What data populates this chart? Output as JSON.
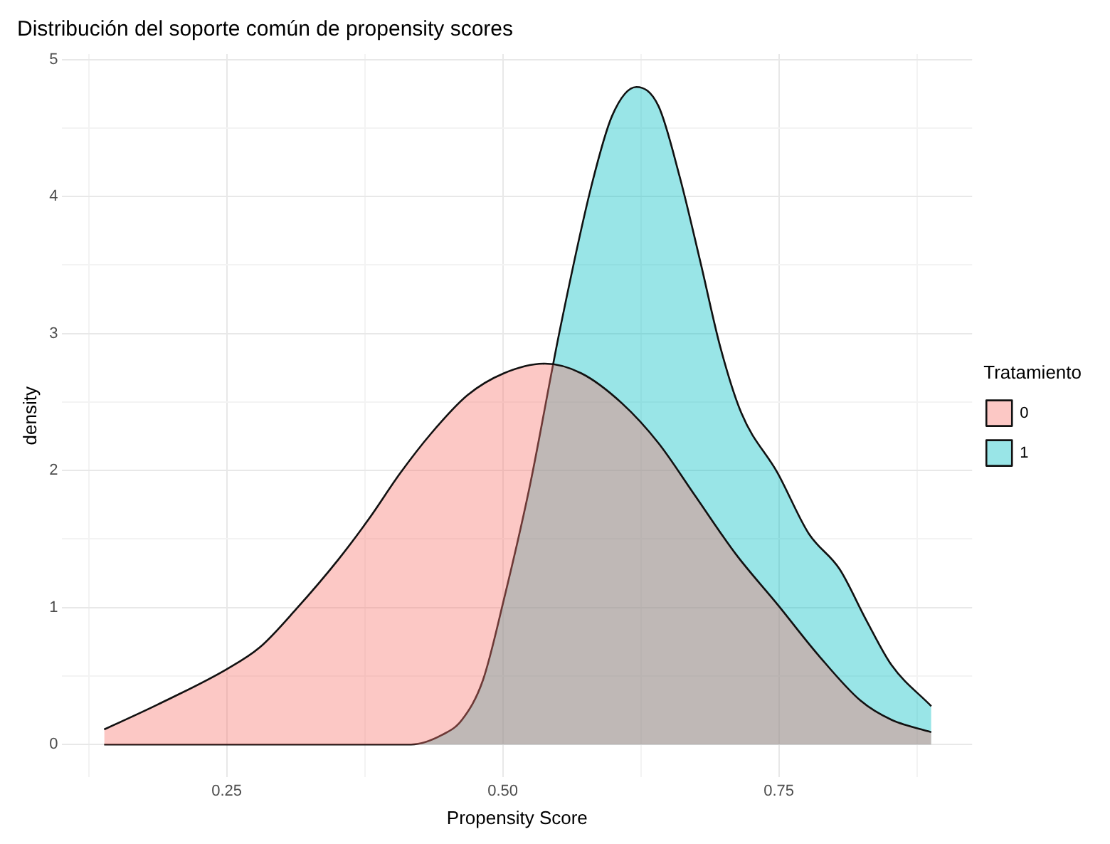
{
  "chart_data": {
    "type": "area",
    "title": "Distribución del soporte común de propensity scores",
    "xlabel": "Propensity Score",
    "ylabel": "density",
    "legend_title": "Tratamiento",
    "legend": "right",
    "grid": true,
    "marker": "none",
    "line_style": "solid",
    "xlim": [
      0.101,
      0.925
    ],
    "ylim": [
      -0.24,
      5.04
    ],
    "xticks": [
      {
        "value": 0.125,
        "label": null
      },
      {
        "value": 0.25,
        "label": "0.25"
      },
      {
        "value": 0.375,
        "label": null
      },
      {
        "value": 0.5,
        "label": "0.50"
      },
      {
        "value": 0.625,
        "label": null
      },
      {
        "value": 0.75,
        "label": "0.75"
      },
      {
        "value": 0.875,
        "label": null
      }
    ],
    "yticks": [
      0,
      {
        "value": 0.5,
        "label": null
      },
      1,
      {
        "value": 1.5,
        "label": null
      },
      2,
      {
        "value": 2.5,
        "label": null
      },
      3,
      {
        "value": 3.5,
        "label": null
      },
      4,
      {
        "value": 4.5,
        "label": null
      },
      5
    ],
    "series": [
      {
        "name": "0",
        "color": "#f8766d",
        "x": [
          0.139,
          0.187,
          0.25,
          0.28,
          0.313,
          0.351,
          0.379,
          0.407,
          0.435,
          0.468,
          0.501,
          0.538,
          0.571,
          0.608,
          0.641,
          0.673,
          0.711,
          0.749,
          0.786,
          0.824,
          0.852,
          0.888
        ],
        "values": [
          0.11,
          0.29,
          0.55,
          0.71,
          0.99,
          1.35,
          1.65,
          1.98,
          2.27,
          2.55,
          2.71,
          2.78,
          2.71,
          2.49,
          2.2,
          1.83,
          1.39,
          1.02,
          0.65,
          0.32,
          0.18,
          0.09
        ]
      },
      {
        "name": "1",
        "color": "#00bfc4",
        "x": [
          0.139,
          0.3,
          0.417,
          0.445,
          0.463,
          0.482,
          0.501,
          0.524,
          0.552,
          0.58,
          0.599,
          0.621,
          0.641,
          0.66,
          0.679,
          0.697,
          0.716,
          0.749,
          0.777,
          0.805,
          0.829,
          0.852,
          0.888
        ],
        "values": [
          0,
          0,
          0,
          0.07,
          0.18,
          0.47,
          1.06,
          1.87,
          3.04,
          4.07,
          4.59,
          4.8,
          4.66,
          4.15,
          3.52,
          2.9,
          2.42,
          1.98,
          1.54,
          1.28,
          0.91,
          0.58,
          0.28
        ]
      }
    ]
  }
}
